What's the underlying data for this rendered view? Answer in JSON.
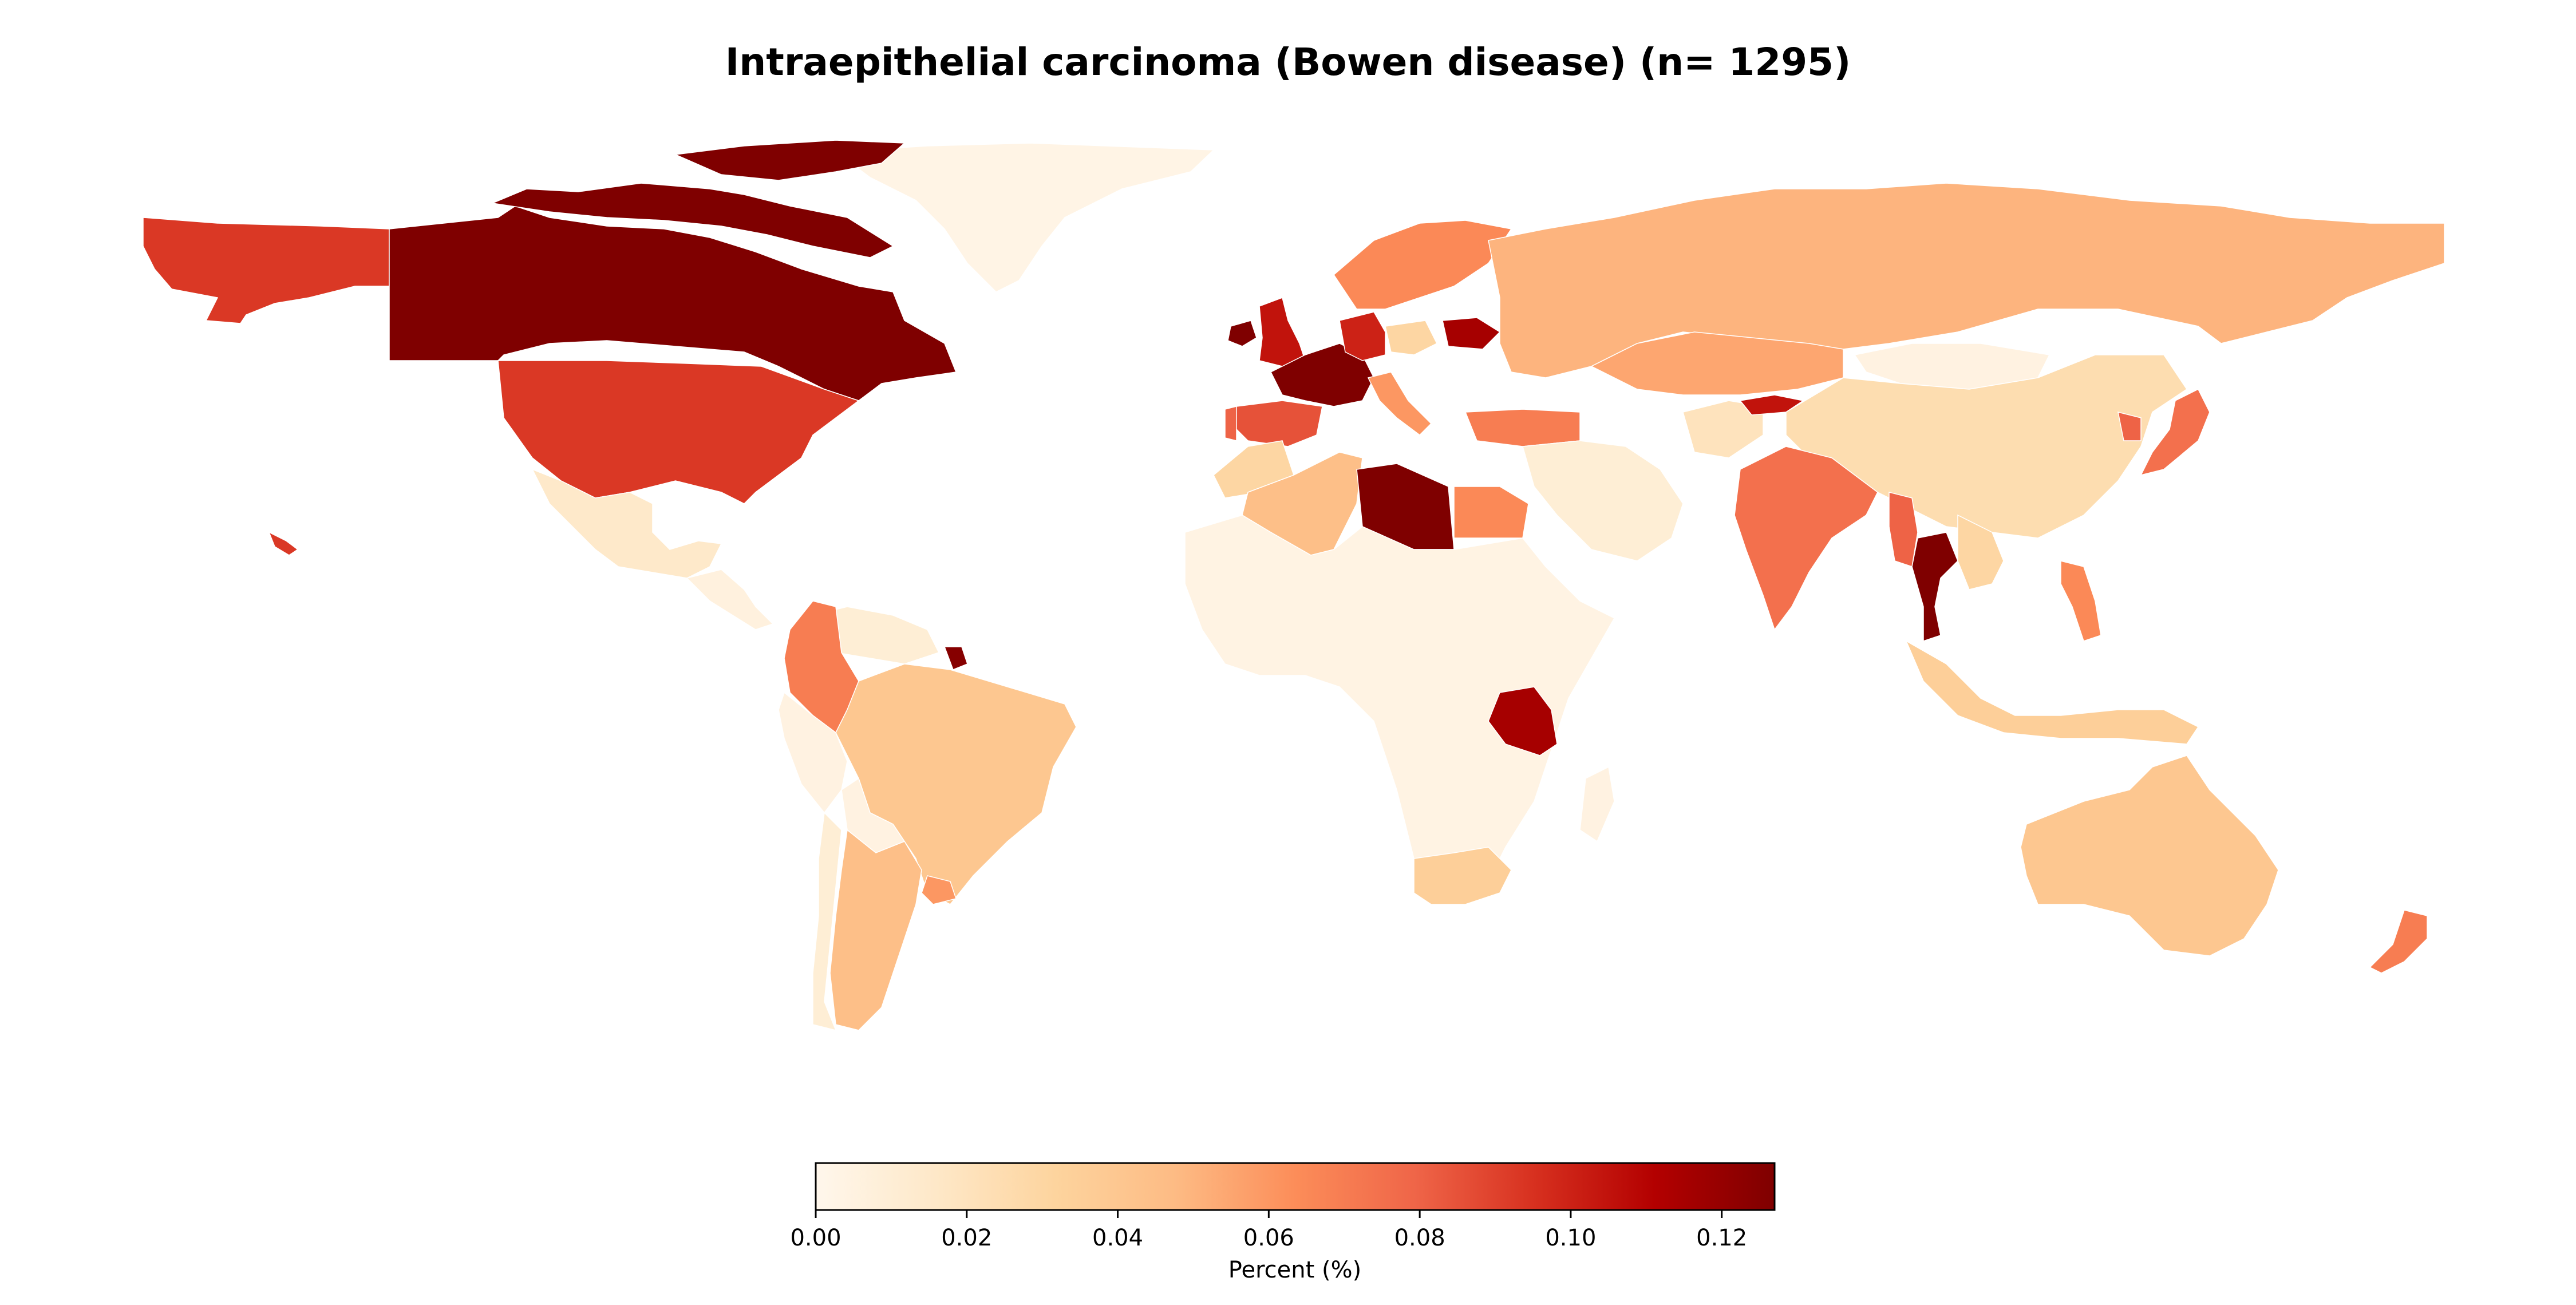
{
  "chart_data": {
    "type": "choropleth",
    "title": "Intraepithelial carcinoma (Bowen disease) (n= 1295)",
    "colormap": "OrRd",
    "colorbar": {
      "label": "Percent (%)",
      "range": [
        0.0,
        0.127
      ],
      "ticks": [
        "0.00",
        "0.02",
        "0.04",
        "0.06",
        "0.08",
        "0.10",
        "0.12"
      ],
      "orientation": "horizontal",
      "placement": "bottom-center"
    },
    "regions": [
      {
        "name": "Canada",
        "value": 0.127
      },
      {
        "name": "United States",
        "value": 0.093
      },
      {
        "name": "Alaska",
        "value": 0.093
      },
      {
        "name": "Greenland",
        "value": 0.003
      },
      {
        "name": "Mexico",
        "value": 0.015
      },
      {
        "name": "Central America",
        "value": 0.006
      },
      {
        "name": "Colombia",
        "value": 0.07
      },
      {
        "name": "Venezuela",
        "value": 0.01
      },
      {
        "name": "French Guiana",
        "value": 0.125
      },
      {
        "name": "Brazil",
        "value": 0.04
      },
      {
        "name": "Peru",
        "value": 0.005
      },
      {
        "name": "Bolivia",
        "value": 0.005
      },
      {
        "name": "Argentina",
        "value": 0.045
      },
      {
        "name": "Chile",
        "value": 0.01
      },
      {
        "name": "Uruguay",
        "value": 0.06
      },
      {
        "name": "United Kingdom",
        "value": 0.105
      },
      {
        "name": "Ireland",
        "value": 0.127
      },
      {
        "name": "France",
        "value": 0.127
      },
      {
        "name": "Spain",
        "value": 0.085
      },
      {
        "name": "Portugal",
        "value": 0.08
      },
      {
        "name": "Germany",
        "value": 0.1
      },
      {
        "name": "Italy",
        "value": 0.06
      },
      {
        "name": "Poland",
        "value": 0.03
      },
      {
        "name": "Belarus",
        "value": 0.115
      },
      {
        "name": "Scandinavia",
        "value": 0.065
      },
      {
        "name": "Russia",
        "value": 0.05
      },
      {
        "name": "Kazakhstan",
        "value": 0.055
      },
      {
        "name": "Turkey",
        "value": 0.07
      },
      {
        "name": "Middle East",
        "value": 0.01
      },
      {
        "name": "Afghanistan",
        "value": 0.02
      },
      {
        "name": "Kyrgyzstan",
        "value": 0.105
      },
      {
        "name": "China",
        "value": 0.025
      },
      {
        "name": "Mongolia",
        "value": 0.005
      },
      {
        "name": "India",
        "value": 0.075
      },
      {
        "name": "Myanmar",
        "value": 0.08
      },
      {
        "name": "Thailand",
        "value": 0.127
      },
      {
        "name": "Vietnam",
        "value": 0.03
      },
      {
        "name": "Japan",
        "value": 0.075
      },
      {
        "name": "South Korea",
        "value": 0.08
      },
      {
        "name": "Philippines",
        "value": 0.065
      },
      {
        "name": "Indonesia",
        "value": 0.035
      },
      {
        "name": "Australia",
        "value": 0.04
      },
      {
        "name": "New Zealand",
        "value": 0.07
      },
      {
        "name": "Algeria",
        "value": 0.045
      },
      {
        "name": "Morocco",
        "value": 0.03
      },
      {
        "name": "Libya",
        "value": 0.127
      },
      {
        "name": "Egypt",
        "value": 0.065
      },
      {
        "name": "Africa (other)",
        "value": 0.004
      },
      {
        "name": "Tanzania",
        "value": 0.115
      },
      {
        "name": "South Africa",
        "value": 0.035
      },
      {
        "name": "Madagascar",
        "value": 0.005
      },
      {
        "name": "Hawaii",
        "value": 0.093
      }
    ]
  }
}
